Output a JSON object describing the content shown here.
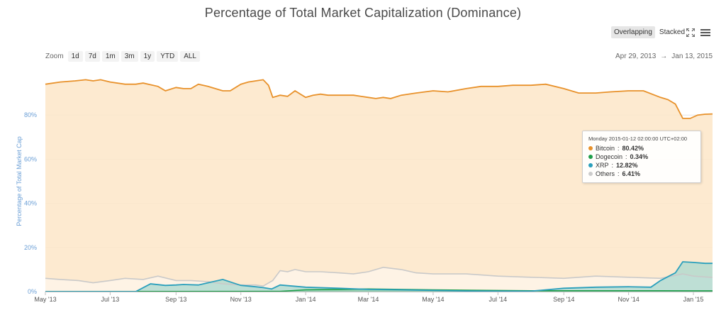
{
  "toolbar": {
    "overlapping_label": "Overlapping",
    "stacked_label": "Stacked",
    "fullscreen_icon": "fullscreen-icon",
    "menu_icon": "menu-icon"
  },
  "zoom": {
    "label": "Zoom",
    "buttons": [
      "1d",
      "7d",
      "1m",
      "3m",
      "1y",
      "YTD",
      "ALL"
    ]
  },
  "range": {
    "from": "Apr 29, 2013",
    "arrow": "→",
    "to": "Jan 13, 2015"
  },
  "tooltip": {
    "header": "Monday 2015-01-12 02:00:00 UTC+02:00",
    "items": [
      {
        "name": "Bitcoin",
        "value": "80.42%",
        "color": "#e8912a"
      },
      {
        "name": "Dogecoin",
        "value": "0.34%",
        "color": "#1e9e4a"
      },
      {
        "name": "XRP",
        "value": "12.82%",
        "color": "#2a9fbc"
      },
      {
        "name": "Others",
        "value": "6.41%",
        "color": "#cccccc"
      }
    ]
  },
  "colors": {
    "bitcoin": "#e8912a",
    "bitcoin_fill": "#fde6c8",
    "xrp": "#2a9fbc",
    "xrp_fill": "#a8d8cf",
    "dogecoin": "#1e9e4a",
    "others": "#c9c9c9",
    "ytick": "#6b9fd6",
    "grid": "#e6e6e6"
  },
  "chart_data": {
    "type": "area",
    "title": "Percentage of Total Market Capitalization (Dominance)",
    "xlabel": "",
    "ylabel": "Percentage of Total Market Cap",
    "x_ticks": [
      "May '13",
      "Jul '13",
      "Sep '13",
      "Nov '13",
      "Jan '14",
      "Mar '14",
      "May '14",
      "Jul '14",
      "Sep '14",
      "Nov '14",
      "Jan '15"
    ],
    "y_ticks": [
      "0%",
      "20%",
      "40%",
      "60%",
      "80%"
    ],
    "ylim": [
      0,
      100
    ],
    "xlim": [
      "2013-05-01",
      "2015-01-19"
    ],
    "legend": "none",
    "grid": true,
    "series": [
      {
        "name": "Bitcoin",
        "x": [
          "2013-05-01",
          "2013-05-15",
          "2013-05-29",
          "2013-06-08",
          "2013-06-15",
          "2013-06-22",
          "2013-07-01",
          "2013-07-15",
          "2013-07-25",
          "2013-08-01",
          "2013-08-15",
          "2013-08-22",
          "2013-09-01",
          "2013-09-08",
          "2013-09-15",
          "2013-09-22",
          "2013-10-01",
          "2013-10-08",
          "2013-10-15",
          "2013-10-22",
          "2013-11-01",
          "2013-11-08",
          "2013-11-15",
          "2013-11-22",
          "2013-11-27",
          "2013-12-01",
          "2013-12-08",
          "2013-12-15",
          "2013-12-22",
          "2014-01-01",
          "2014-01-08",
          "2014-01-15",
          "2014-01-22",
          "2014-02-01",
          "2014-02-15",
          "2014-03-01",
          "2014-03-08",
          "2014-03-15",
          "2014-03-22",
          "2014-04-01",
          "2014-04-15",
          "2014-05-01",
          "2014-05-15",
          "2014-06-01",
          "2014-06-15",
          "2014-07-01",
          "2014-07-15",
          "2014-08-01",
          "2014-08-15",
          "2014-09-01",
          "2014-09-15",
          "2014-10-01",
          "2014-10-15",
          "2014-11-01",
          "2014-11-15",
          "2014-12-01",
          "2014-12-08",
          "2014-12-15",
          "2014-12-22",
          "2014-12-29",
          "2015-01-05",
          "2015-01-12",
          "2015-01-19"
        ],
        "values": [
          94,
          95,
          95.5,
          96,
          95.5,
          96,
          95,
          94,
          94,
          94.5,
          93,
          91,
          92.5,
          92,
          92,
          94,
          93,
          92,
          91,
          91,
          94,
          95,
          95.5,
          96,
          93.5,
          88,
          89,
          88.5,
          91,
          88,
          89,
          89.5,
          89,
          89,
          89,
          88,
          87.5,
          88,
          87.5,
          89,
          90,
          91,
          90.5,
          92,
          93,
          93,
          93.5,
          93.5,
          94,
          92,
          90,
          90,
          90.5,
          91,
          91,
          88,
          87,
          85,
          78.5,
          78.5,
          80,
          80.4,
          80.5
        ],
        "color": "#e8912a"
      },
      {
        "name": "Dogecoin",
        "x": [
          "2013-05-01",
          "2013-12-08",
          "2014-01-01",
          "2014-02-01",
          "2014-03-01",
          "2014-04-01",
          "2014-05-01",
          "2014-06-01",
          "2014-07-01",
          "2014-08-01",
          "2014-09-01",
          "2014-10-01",
          "2014-11-01",
          "2014-12-01",
          "2015-01-01",
          "2015-01-19"
        ],
        "values": [
          0,
          0.1,
          0.8,
          1,
          1.2,
          1,
          0.8,
          0.6,
          0.5,
          0.4,
          0.4,
          0.4,
          0.4,
          0.4,
          0.35,
          0.34
        ],
        "color": "#1e9e4a"
      },
      {
        "name": "XRP",
        "x": [
          "2013-05-01",
          "2013-07-25",
          "2013-08-08",
          "2013-08-22",
          "2013-09-01",
          "2013-09-08",
          "2013-09-22",
          "2013-10-01",
          "2013-10-15",
          "2013-11-01",
          "2013-11-15",
          "2013-11-22",
          "2013-11-30",
          "2013-12-08",
          "2014-01-01",
          "2014-02-01",
          "2014-03-01",
          "2014-04-01",
          "2014-05-01",
          "2014-06-01",
          "2014-07-01",
          "2014-08-01",
          "2014-09-01",
          "2014-10-01",
          "2014-11-01",
          "2014-11-22",
          "2014-12-01",
          "2014-12-15",
          "2014-12-22",
          "2015-01-01",
          "2015-01-12",
          "2015-01-19"
        ],
        "values": [
          0,
          0,
          3.5,
          2.8,
          3,
          3.2,
          3,
          4,
          5.5,
          2.8,
          2.2,
          1.8,
          1.2,
          3,
          2,
          1.5,
          1,
          0.8,
          0.5,
          0.3,
          0.2,
          0.2,
          1.5,
          2,
          2.2,
          2,
          5,
          8.5,
          13.5,
          13.2,
          12.8,
          12.8
        ],
        "color": "#2a9fbc"
      },
      {
        "name": "Others",
        "x": [
          "2013-05-01",
          "2013-05-15",
          "2013-06-01",
          "2013-06-15",
          "2013-07-01",
          "2013-07-15",
          "2013-08-01",
          "2013-08-15",
          "2013-09-01",
          "2013-09-15",
          "2013-10-01",
          "2013-10-15",
          "2013-11-01",
          "2013-11-15",
          "2013-11-22",
          "2013-12-01",
          "2013-12-08",
          "2013-12-15",
          "2013-12-22",
          "2014-01-01",
          "2014-01-15",
          "2014-02-01",
          "2014-02-15",
          "2014-03-01",
          "2014-03-15",
          "2014-04-01",
          "2014-04-15",
          "2014-05-01",
          "2014-06-01",
          "2014-07-01",
          "2014-08-01",
          "2014-09-01",
          "2014-10-01",
          "2014-11-01",
          "2014-12-01",
          "2014-12-22",
          "2015-01-01",
          "2015-01-19"
        ],
        "values": [
          6,
          5.5,
          5,
          4,
          5,
          6,
          5.5,
          7,
          5,
          5,
          4.5,
          3.5,
          3,
          3,
          2.5,
          5,
          9.5,
          9,
          10,
          9,
          9,
          8.5,
          8,
          9,
          11,
          10,
          8.5,
          8,
          8,
          7,
          6.5,
          6,
          7,
          6.5,
          6,
          8,
          7,
          6.4
        ],
        "color": "#c9c9c9"
      }
    ]
  }
}
